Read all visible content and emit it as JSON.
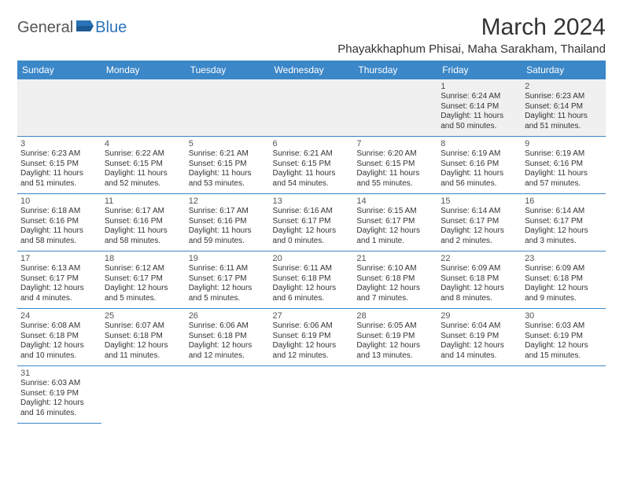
{
  "logo": {
    "text1": "General",
    "text2": "Blue"
  },
  "title": "March 2024",
  "location": "Phayakkhaphum Phisai, Maha Sarakham, Thailand",
  "colors": {
    "header_bg": "#3b87c8",
    "header_fg": "#ffffff",
    "row_border": "#3b87c8",
    "first_row_bg": "#f0f0f0",
    "logo_accent": "#2a73b8"
  },
  "weekdays": [
    "Sunday",
    "Monday",
    "Tuesday",
    "Wednesday",
    "Thursday",
    "Friday",
    "Saturday"
  ],
  "weeks": [
    [
      null,
      null,
      null,
      null,
      null,
      {
        "n": "1",
        "sr": "Sunrise: 6:24 AM",
        "ss": "Sunset: 6:14 PM",
        "d1": "Daylight: 11 hours",
        "d2": "and 50 minutes."
      },
      {
        "n": "2",
        "sr": "Sunrise: 6:23 AM",
        "ss": "Sunset: 6:14 PM",
        "d1": "Daylight: 11 hours",
        "d2": "and 51 minutes."
      }
    ],
    [
      {
        "n": "3",
        "sr": "Sunrise: 6:23 AM",
        "ss": "Sunset: 6:15 PM",
        "d1": "Daylight: 11 hours",
        "d2": "and 51 minutes."
      },
      {
        "n": "4",
        "sr": "Sunrise: 6:22 AM",
        "ss": "Sunset: 6:15 PM",
        "d1": "Daylight: 11 hours",
        "d2": "and 52 minutes."
      },
      {
        "n": "5",
        "sr": "Sunrise: 6:21 AM",
        "ss": "Sunset: 6:15 PM",
        "d1": "Daylight: 11 hours",
        "d2": "and 53 minutes."
      },
      {
        "n": "6",
        "sr": "Sunrise: 6:21 AM",
        "ss": "Sunset: 6:15 PM",
        "d1": "Daylight: 11 hours",
        "d2": "and 54 minutes."
      },
      {
        "n": "7",
        "sr": "Sunrise: 6:20 AM",
        "ss": "Sunset: 6:15 PM",
        "d1": "Daylight: 11 hours",
        "d2": "and 55 minutes."
      },
      {
        "n": "8",
        "sr": "Sunrise: 6:19 AM",
        "ss": "Sunset: 6:16 PM",
        "d1": "Daylight: 11 hours",
        "d2": "and 56 minutes."
      },
      {
        "n": "9",
        "sr": "Sunrise: 6:19 AM",
        "ss": "Sunset: 6:16 PM",
        "d1": "Daylight: 11 hours",
        "d2": "and 57 minutes."
      }
    ],
    [
      {
        "n": "10",
        "sr": "Sunrise: 6:18 AM",
        "ss": "Sunset: 6:16 PM",
        "d1": "Daylight: 11 hours",
        "d2": "and 58 minutes."
      },
      {
        "n": "11",
        "sr": "Sunrise: 6:17 AM",
        "ss": "Sunset: 6:16 PM",
        "d1": "Daylight: 11 hours",
        "d2": "and 58 minutes."
      },
      {
        "n": "12",
        "sr": "Sunrise: 6:17 AM",
        "ss": "Sunset: 6:16 PM",
        "d1": "Daylight: 11 hours",
        "d2": "and 59 minutes."
      },
      {
        "n": "13",
        "sr": "Sunrise: 6:16 AM",
        "ss": "Sunset: 6:17 PM",
        "d1": "Daylight: 12 hours",
        "d2": "and 0 minutes."
      },
      {
        "n": "14",
        "sr": "Sunrise: 6:15 AM",
        "ss": "Sunset: 6:17 PM",
        "d1": "Daylight: 12 hours",
        "d2": "and 1 minute."
      },
      {
        "n": "15",
        "sr": "Sunrise: 6:14 AM",
        "ss": "Sunset: 6:17 PM",
        "d1": "Daylight: 12 hours",
        "d2": "and 2 minutes."
      },
      {
        "n": "16",
        "sr": "Sunrise: 6:14 AM",
        "ss": "Sunset: 6:17 PM",
        "d1": "Daylight: 12 hours",
        "d2": "and 3 minutes."
      }
    ],
    [
      {
        "n": "17",
        "sr": "Sunrise: 6:13 AM",
        "ss": "Sunset: 6:17 PM",
        "d1": "Daylight: 12 hours",
        "d2": "and 4 minutes."
      },
      {
        "n": "18",
        "sr": "Sunrise: 6:12 AM",
        "ss": "Sunset: 6:17 PM",
        "d1": "Daylight: 12 hours",
        "d2": "and 5 minutes."
      },
      {
        "n": "19",
        "sr": "Sunrise: 6:11 AM",
        "ss": "Sunset: 6:17 PM",
        "d1": "Daylight: 12 hours",
        "d2": "and 5 minutes."
      },
      {
        "n": "20",
        "sr": "Sunrise: 6:11 AM",
        "ss": "Sunset: 6:18 PM",
        "d1": "Daylight: 12 hours",
        "d2": "and 6 minutes."
      },
      {
        "n": "21",
        "sr": "Sunrise: 6:10 AM",
        "ss": "Sunset: 6:18 PM",
        "d1": "Daylight: 12 hours",
        "d2": "and 7 minutes."
      },
      {
        "n": "22",
        "sr": "Sunrise: 6:09 AM",
        "ss": "Sunset: 6:18 PM",
        "d1": "Daylight: 12 hours",
        "d2": "and 8 minutes."
      },
      {
        "n": "23",
        "sr": "Sunrise: 6:09 AM",
        "ss": "Sunset: 6:18 PM",
        "d1": "Daylight: 12 hours",
        "d2": "and 9 minutes."
      }
    ],
    [
      {
        "n": "24",
        "sr": "Sunrise: 6:08 AM",
        "ss": "Sunset: 6:18 PM",
        "d1": "Daylight: 12 hours",
        "d2": "and 10 minutes."
      },
      {
        "n": "25",
        "sr": "Sunrise: 6:07 AM",
        "ss": "Sunset: 6:18 PM",
        "d1": "Daylight: 12 hours",
        "d2": "and 11 minutes."
      },
      {
        "n": "26",
        "sr": "Sunrise: 6:06 AM",
        "ss": "Sunset: 6:18 PM",
        "d1": "Daylight: 12 hours",
        "d2": "and 12 minutes."
      },
      {
        "n": "27",
        "sr": "Sunrise: 6:06 AM",
        "ss": "Sunset: 6:19 PM",
        "d1": "Daylight: 12 hours",
        "d2": "and 12 minutes."
      },
      {
        "n": "28",
        "sr": "Sunrise: 6:05 AM",
        "ss": "Sunset: 6:19 PM",
        "d1": "Daylight: 12 hours",
        "d2": "and 13 minutes."
      },
      {
        "n": "29",
        "sr": "Sunrise: 6:04 AM",
        "ss": "Sunset: 6:19 PM",
        "d1": "Daylight: 12 hours",
        "d2": "and 14 minutes."
      },
      {
        "n": "30",
        "sr": "Sunrise: 6:03 AM",
        "ss": "Sunset: 6:19 PM",
        "d1": "Daylight: 12 hours",
        "d2": "and 15 minutes."
      }
    ],
    [
      {
        "n": "31",
        "sr": "Sunrise: 6:03 AM",
        "ss": "Sunset: 6:19 PM",
        "d1": "Daylight: 12 hours",
        "d2": "and 16 minutes."
      },
      null,
      null,
      null,
      null,
      null,
      null
    ]
  ]
}
